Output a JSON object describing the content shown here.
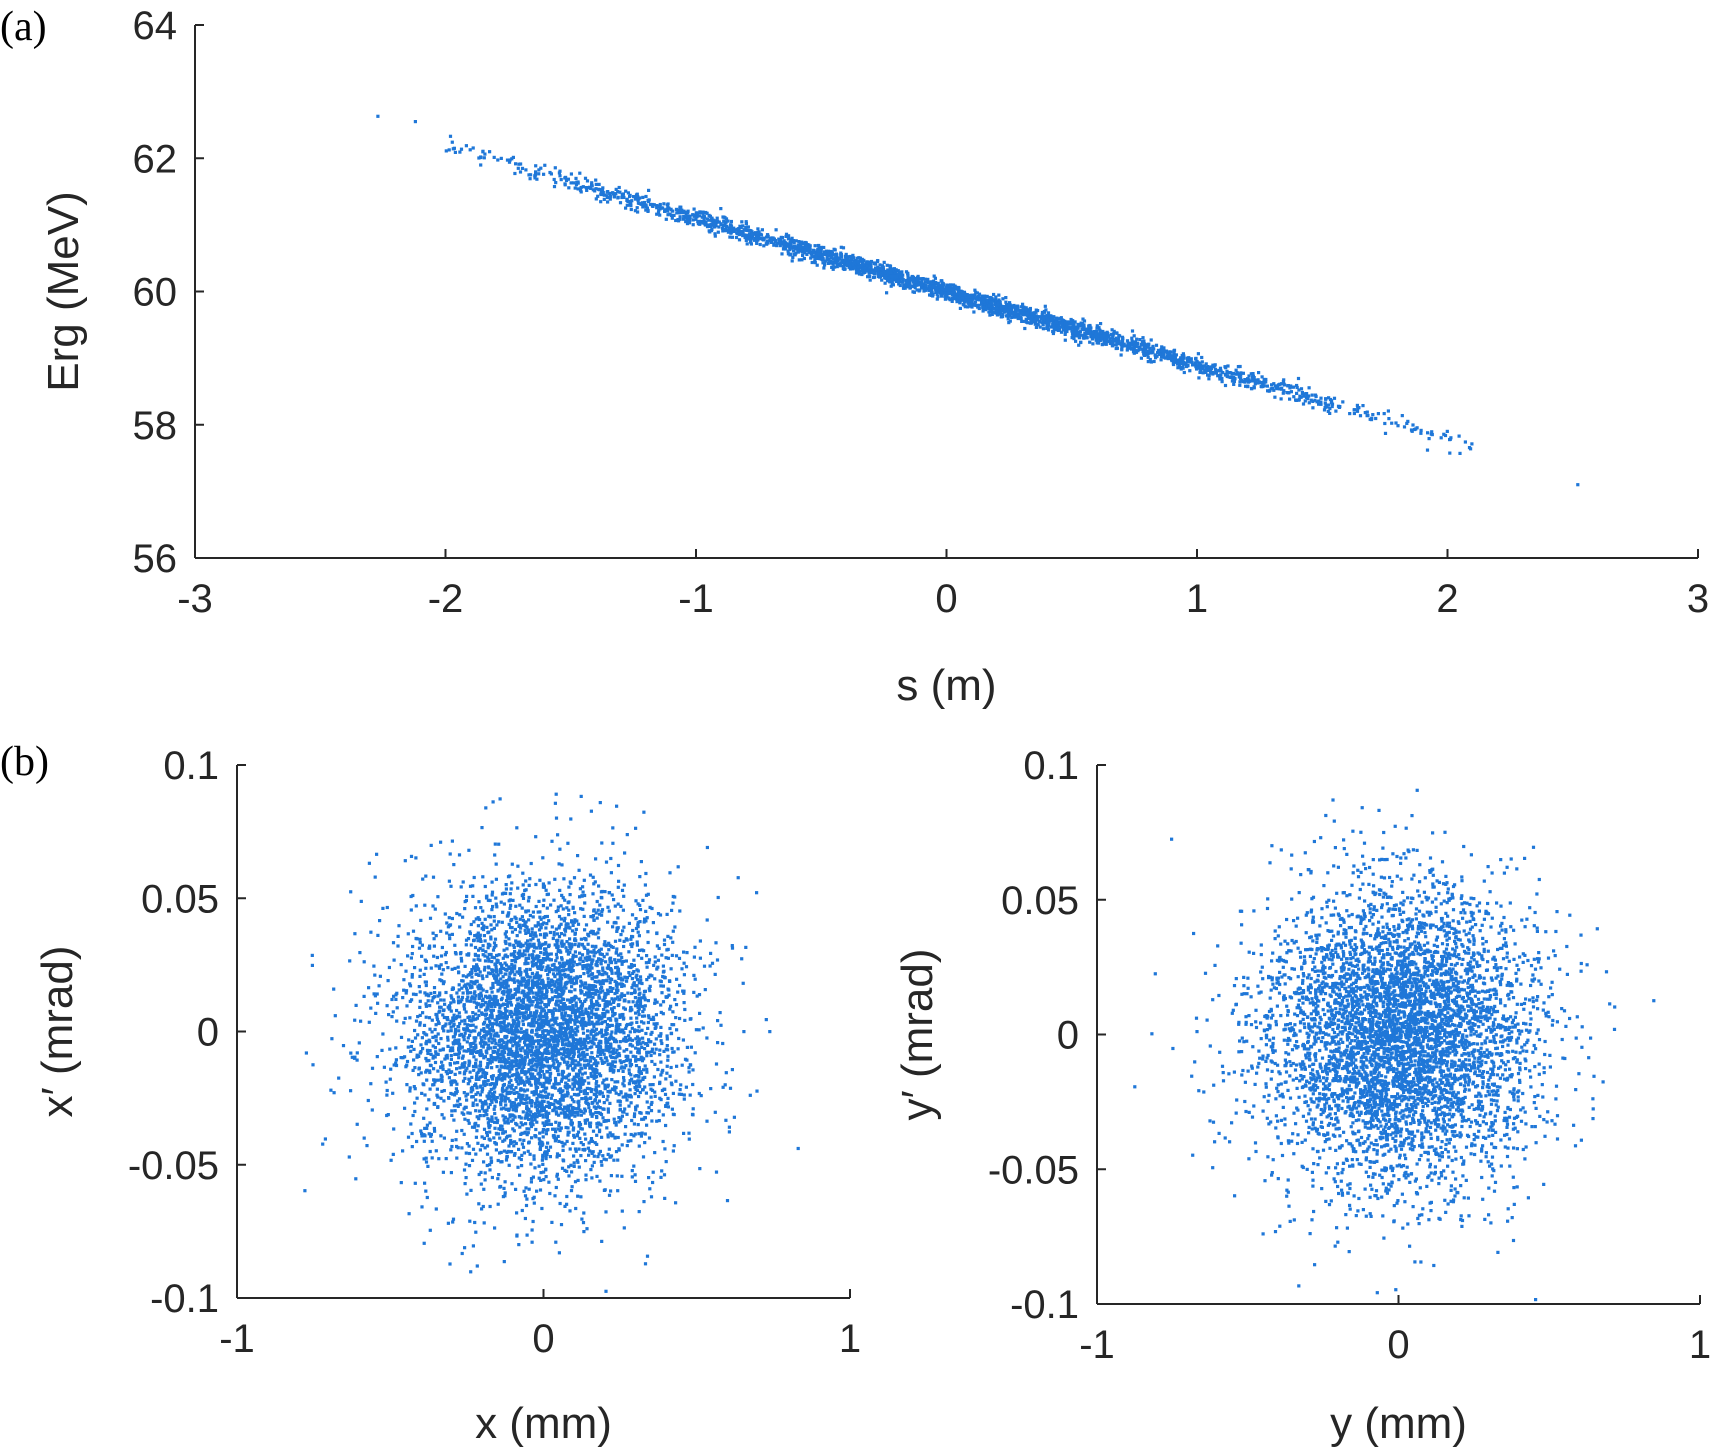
{
  "panel_labels": [
    "(a)",
    "(b)"
  ],
  "chart_data": [
    {
      "type": "scatter",
      "panel": "(a)",
      "xlabel": "s (m)",
      "ylabel": "Erg (MeV)",
      "xlim": [
        -3,
        3
      ],
      "ylim": [
        56,
        64
      ],
      "x_ticks": [
        -3,
        -2,
        -1,
        0,
        1,
        2,
        3
      ],
      "x_tick_labels": [
        "-3",
        "-2",
        "-1",
        "0",
        "1",
        "2",
        "3"
      ],
      "y_ticks": [
        56,
        58,
        60,
        62,
        64
      ],
      "y_tick_labels": [
        "56",
        "58",
        "60",
        "62",
        "64"
      ],
      "grid": false,
      "marker_color": "#1f77d8",
      "trend": {
        "slope": -1.1,
        "intercept": 60.0,
        "x_range": [
          -2.0,
          2.1
        ],
        "spread": 0.07
      },
      "outliers": [
        {
          "x": -2.27,
          "y": 62.63
        },
        {
          "x": -2.12,
          "y": 62.55
        },
        {
          "x": -1.98,
          "y": 62.33
        },
        {
          "x": 1.92,
          "y": 57.62
        },
        {
          "x": 2.05,
          "y": 57.57
        },
        {
          "x": 2.52,
          "y": 57.1
        }
      ]
    },
    {
      "type": "scatter",
      "panel": "(b)",
      "xlabel": "x (mm)",
      "ylabel": "x′ (mrad)",
      "xlim": [
        -1,
        1
      ],
      "ylim": [
        -0.1,
        0.1
      ],
      "x_ticks": [
        -1,
        0,
        1
      ],
      "x_tick_labels": [
        "-1",
        "0",
        "1"
      ],
      "y_ticks": [
        -0.1,
        -0.05,
        0,
        0.05,
        0.1
      ],
      "y_tick_labels": [
        "-0.1",
        "-0.05",
        "0",
        "0.05",
        "0.1"
      ],
      "grid": false,
      "marker_color": "#1f77d8",
      "distribution": {
        "x_mean": 0.0,
        "x_sigma": 0.22,
        "y_mean": 0.0,
        "y_sigma": 0.027
      }
    },
    {
      "type": "scatter",
      "panel": "(b)",
      "xlabel": "y (mm)",
      "ylabel": "y′ (mrad)",
      "xlim": [
        -1,
        1
      ],
      "ylim": [
        -0.1,
        0.1
      ],
      "x_ticks": [
        -1,
        0,
        1
      ],
      "x_tick_labels": [
        "-1",
        "0",
        "1"
      ],
      "y_ticks": [
        -0.1,
        -0.05,
        0,
        0.05,
        0.1
      ],
      "y_tick_labels": [
        "-0.1",
        "-0.05",
        "0",
        "0.05",
        "0.1"
      ],
      "grid": false,
      "marker_color": "#1f77d8",
      "distribution": {
        "x_mean": 0.0,
        "x_sigma": 0.22,
        "y_mean": 0.0,
        "y_sigma": 0.027
      }
    }
  ]
}
